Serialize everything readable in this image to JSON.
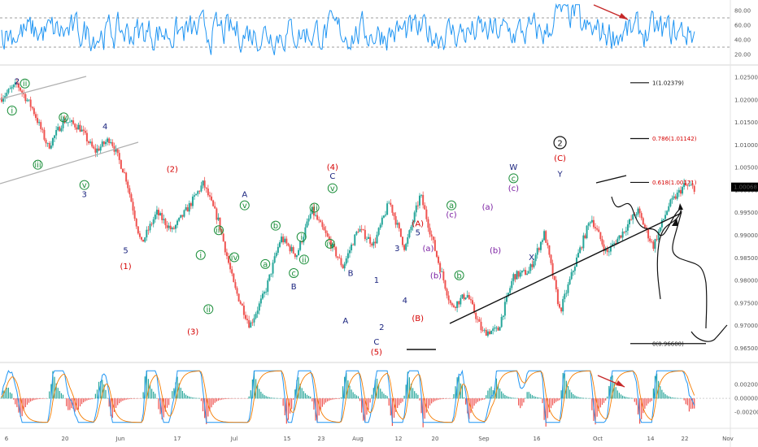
{
  "chart_data": {
    "type": "line",
    "title": "",
    "colors": {
      "up": "#26a69a",
      "down": "#ef5350",
      "rsi": "#2196f3",
      "price_tag": "#000000",
      "wave_navy": "#1a237e",
      "wave_red": "#d50000",
      "wave_green": "#1b8e3a",
      "wave_purple": "#7b1fa2",
      "wave_black": "#111111",
      "fib_red": "#d50000"
    },
    "price_axis": {
      "ylim": [
        0.962,
        1.027
      ],
      "ticks": [
        "1.02500",
        "1.02000",
        "1.01500",
        "1.01000",
        "1.00500",
        "1.00000",
        "0.99500",
        "0.99000",
        "0.98500",
        "0.98000",
        "0.97500",
        "0.97000",
        "0.96500"
      ],
      "current": "1.00068"
    },
    "rsi_axis": {
      "ylim": [
        10,
        90
      ],
      "ticks": [
        "80.00",
        "60.00",
        "40.00",
        "20.00"
      ],
      "guides": [
        70,
        30
      ]
    },
    "osc_axis": {
      "ylim": [
        -0.004,
        0.0045
      ],
      "ticks": [
        "0.00200",
        "0.00000",
        "-0.00200"
      ]
    },
    "x_ticks": [
      "6",
      "20",
      "Jun",
      "17",
      "Jul",
      "15",
      "23",
      "Aug",
      "12",
      "20",
      "Sep",
      "16",
      "Oct",
      "14",
      "22",
      "Nov"
    ],
    "price_series": {
      "name": "",
      "x": [
        0,
        3,
        6,
        9,
        12,
        15,
        18,
        21,
        24,
        27,
        30,
        33,
        36,
        39,
        42,
        45,
        48,
        51,
        54,
        57,
        60,
        63,
        66,
        69,
        72,
        75,
        78,
        81,
        84,
        87,
        90,
        93,
        96,
        99,
        102,
        105,
        108,
        111,
        114,
        117,
        120,
        123,
        126,
        129,
        132,
        134
      ],
      "y": [
        1.0205,
        1.0235,
        1.018,
        1.0095,
        1.0155,
        1.014,
        1.0085,
        1.0115,
        1.003,
        0.988,
        0.995,
        0.991,
        0.996,
        1.0015,
        0.993,
        0.9785,
        0.97,
        0.9775,
        0.9895,
        0.9855,
        0.9955,
        0.9895,
        0.983,
        0.9915,
        0.988,
        0.9975,
        0.987,
        0.999,
        0.986,
        0.974,
        0.977,
        0.9685,
        0.969,
        0.981,
        0.982,
        0.9905,
        0.973,
        0.984,
        0.994,
        0.986,
        0.9905,
        0.9955,
        0.9875,
        0.9965,
        1.001,
        1.0005
      ]
    },
    "wave_labels": [
      {
        "t": "2",
        "x": 3,
        "y": 1.0235,
        "c": "wave_navy"
      },
      {
        "t": "ii",
        "x": 4.5,
        "y": 1.023,
        "c": "wave_green",
        "circ": true
      },
      {
        "t": "i",
        "x": 2,
        "y": 1.017,
        "c": "wave_green",
        "circ": true
      },
      {
        "t": "iv",
        "x": 12,
        "y": 1.0155,
        "c": "wave_green",
        "circ": true
      },
      {
        "t": "iii",
        "x": 7,
        "y": 1.005,
        "c": "wave_green",
        "circ": true
      },
      {
        "t": "4",
        "x": 20,
        "y": 1.0135,
        "c": "wave_navy"
      },
      {
        "t": "v",
        "x": 16,
        "y": 1.0005,
        "c": "wave_green",
        "circ": true
      },
      {
        "t": "3",
        "x": 16,
        "y": 0.9985,
        "c": "wave_navy"
      },
      {
        "t": "5",
        "x": 24,
        "y": 0.986,
        "c": "wave_navy"
      },
      {
        "t": "(1)",
        "x": 24,
        "y": 0.9825,
        "c": "wave_red"
      },
      {
        "t": "(2)",
        "x": 33,
        "y": 1.004,
        "c": "wave_red"
      },
      {
        "t": "(3)",
        "x": 37,
        "y": 0.968,
        "c": "wave_red"
      },
      {
        "t": "i",
        "x": 38.5,
        "y": 0.985,
        "c": "wave_green",
        "circ": true
      },
      {
        "t": "ii",
        "x": 40,
        "y": 0.973,
        "c": "wave_green",
        "circ": true
      },
      {
        "t": "iii",
        "x": 42,
        "y": 0.9905,
        "c": "wave_green",
        "circ": true
      },
      {
        "t": "iv",
        "x": 45,
        "y": 0.9845,
        "c": "wave_green",
        "circ": true
      },
      {
        "t": "A",
        "x": 47,
        "y": 0.9985,
        "c": "wave_navy"
      },
      {
        "t": "v",
        "x": 47,
        "y": 0.996,
        "c": "wave_green",
        "circ": true
      },
      {
        "t": "a",
        "x": 51,
        "y": 0.983,
        "c": "wave_green",
        "circ": true
      },
      {
        "t": "b",
        "x": 53,
        "y": 0.9915,
        "c": "wave_green",
        "circ": true
      },
      {
        "t": "c",
        "x": 56.5,
        "y": 0.981,
        "c": "wave_green",
        "circ": true
      },
      {
        "t": "B",
        "x": 56.5,
        "y": 0.978,
        "c": "wave_navy"
      },
      {
        "t": "i",
        "x": 58,
        "y": 0.989,
        "c": "wave_green",
        "circ": true
      },
      {
        "t": "ii",
        "x": 58.5,
        "y": 0.984,
        "c": "wave_green",
        "circ": true
      },
      {
        "t": "iii",
        "x": 60.5,
        "y": 0.9955,
        "c": "wave_green",
        "circ": true
      },
      {
        "t": "(4)",
        "x": 64,
        "y": 1.0045,
        "c": "wave_red"
      },
      {
        "t": "C",
        "x": 64,
        "y": 1.0025,
        "c": "wave_navy"
      },
      {
        "t": "v",
        "x": 64,
        "y": 0.9998,
        "c": "wave_green",
        "circ": true
      },
      {
        "t": "iv",
        "x": 63.5,
        "y": 0.9875,
        "c": "wave_green",
        "circ": true
      },
      {
        "t": "B",
        "x": 67.5,
        "y": 0.981,
        "c": "wave_navy"
      },
      {
        "t": "A",
        "x": 66.5,
        "y": 0.9705,
        "c": "wave_navy"
      },
      {
        "t": "1",
        "x": 72.5,
        "y": 0.9795,
        "c": "wave_navy"
      },
      {
        "t": "2",
        "x": 73.5,
        "y": 0.969,
        "c": "wave_navy"
      },
      {
        "t": "C",
        "x": 72.5,
        "y": 0.9658,
        "c": "wave_navy"
      },
      {
        "t": "(5)",
        "x": 72.5,
        "y": 0.9635,
        "c": "wave_red"
      },
      {
        "t": "3",
        "x": 76.5,
        "y": 0.9865,
        "c": "wave_navy"
      },
      {
        "t": "4",
        "x": 78,
        "y": 0.975,
        "c": "wave_navy"
      },
      {
        "t": "(A)",
        "x": 80.5,
        "y": 0.992,
        "c": "wave_red"
      },
      {
        "t": "5",
        "x": 80.5,
        "y": 0.99,
        "c": "wave_navy"
      },
      {
        "t": "(B)",
        "x": 80.5,
        "y": 0.971,
        "c": "wave_red"
      },
      {
        "t": "(a)",
        "x": 82.5,
        "y": 0.9865,
        "c": "wave_purple"
      },
      {
        "t": "(b)",
        "x": 84,
        "y": 0.9805,
        "c": "wave_purple"
      },
      {
        "t": "(c)",
        "x": 87,
        "y": 0.994,
        "c": "wave_purple"
      },
      {
        "t": "a",
        "x": 87,
        "y": 0.996,
        "c": "wave_green",
        "circ": true
      },
      {
        "t": "b",
        "x": 88.5,
        "y": 0.9805,
        "c": "wave_green",
        "circ": true
      },
      {
        "t": "(a)",
        "x": 94,
        "y": 0.9957,
        "c": "wave_purple"
      },
      {
        "t": "(b)",
        "x": 95.5,
        "y": 0.986,
        "c": "wave_purple"
      },
      {
        "t": "(c)",
        "x": 99,
        "y": 0.9998,
        "c": "wave_purple"
      },
      {
        "t": "c",
        "x": 99,
        "y": 1.002,
        "c": "wave_green",
        "circ": true
      },
      {
        "t": "W",
        "x": 99,
        "y": 1.0045,
        "c": "wave_navy"
      },
      {
        "t": "X",
        "x": 102.5,
        "y": 0.9845,
        "c": "wave_navy"
      },
      {
        "t": "(C)",
        "x": 108,
        "y": 1.0065,
        "c": "wave_red"
      },
      {
        "t": "Y",
        "x": 108,
        "y": 1.003,
        "c": "wave_navy"
      },
      {
        "t": "2",
        "x": 108,
        "y": 1.0098,
        "c": "wave_black",
        "ring": true
      }
    ],
    "fib_levels": [
      {
        "label": "1(1.02379)",
        "value": 1.02379,
        "color": "#111111"
      },
      {
        "label": "0.786(1.01142)",
        "value": 1.01142,
        "color": "#d50000"
      },
      {
        "label": "0.618(1.00171)",
        "value": 1.00171,
        "color": "#d50000"
      },
      {
        "label": "0(0.96600)",
        "value": 0.966,
        "color": "#111111"
      }
    ]
  }
}
